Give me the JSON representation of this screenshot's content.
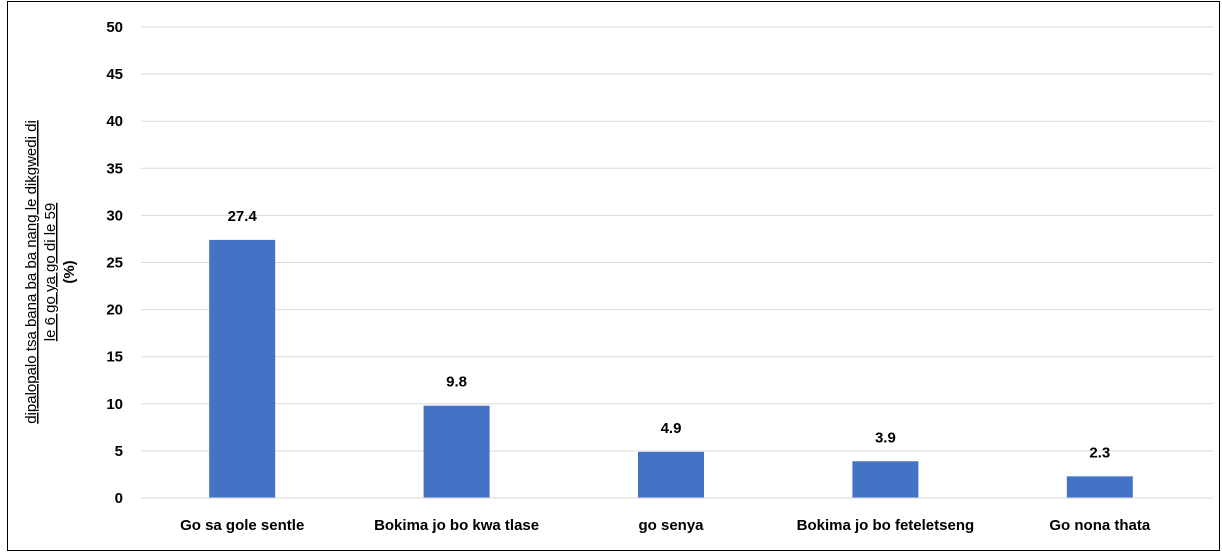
{
  "chart_data": {
    "type": "bar",
    "categories": [
      "Go sa gole sentle",
      "Bokima jo bo kwa tlase",
      "go senya",
      "Bokima jo bo feteletseng",
      "Go nona thata"
    ],
    "values": [
      27.4,
      9.8,
      4.9,
      3.9,
      2.3
    ],
    "data_labels": [
      "27.4",
      "9.8",
      "4.9",
      "3.9",
      "2.3"
    ],
    "ylabel_lines": [
      "dipalopalo tsa bana ba ba nang le dikgwedi di",
      "le 6 go ya go di le 59"
    ],
    "ylabel_unit": "(%)",
    "ylim": [
      0,
      50
    ],
    "yticks": [
      "0",
      "5",
      "10",
      "15",
      "20",
      "25",
      "30",
      "35",
      "40",
      "45",
      "50"
    ],
    "grid": true,
    "bar_color": "#4472C4",
    "grid_color": "#D9D9D9"
  }
}
